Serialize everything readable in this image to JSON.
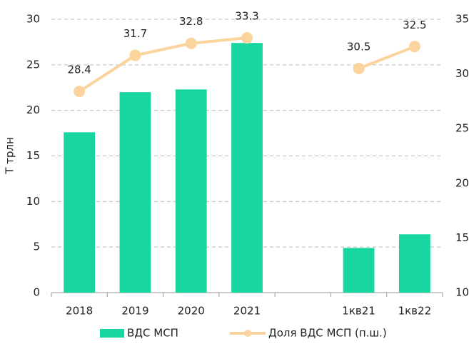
{
  "chart_data": {
    "type": "bar",
    "y_label": "Т трлн",
    "categories": [
      "2018",
      "2019",
      "2020",
      "2021",
      null,
      "1кв21",
      "1кв22"
    ],
    "series": [
      {
        "name": "ВДС МСП",
        "type": "bar",
        "color": "#18d6a0",
        "values": [
          17.6,
          22.0,
          22.3,
          27.4,
          null,
          4.9,
          6.4
        ]
      },
      {
        "name": "Доля ВДС МСП (п.ш.)",
        "type": "line",
        "axis": "y2",
        "color": "#fad49c",
        "values": [
          28.4,
          31.7,
          32.8,
          33.3,
          null,
          30.5,
          32.5
        ]
      }
    ],
    "ylim": [
      0,
      30
    ],
    "yticks": [
      0,
      5,
      10,
      15,
      20,
      25,
      30
    ],
    "y2lim": [
      10,
      35
    ],
    "y2ticks": [
      10,
      15,
      20,
      25,
      30,
      35
    ],
    "grid": true
  }
}
